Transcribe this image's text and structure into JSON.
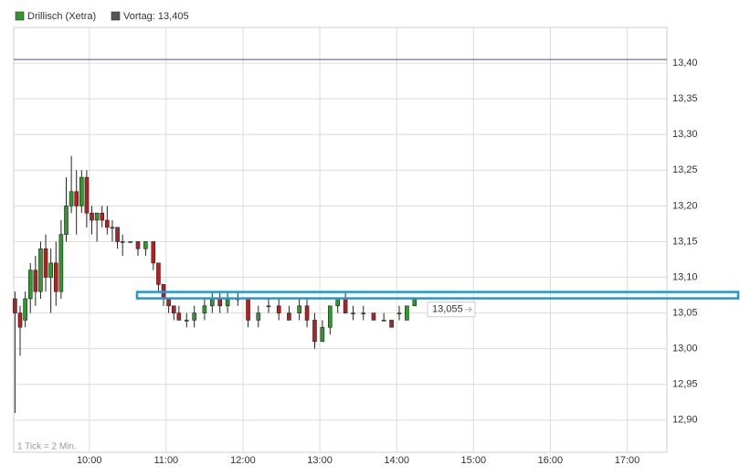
{
  "chart_data": {
    "type": "candlestick",
    "series": [
      {
        "name": "Drillisch (Xetra)",
        "color": "#2e9a2e",
        "down_color": "#b82020",
        "x": [
          "09:02",
          "09:06",
          "09:10",
          "09:14",
          "09:18",
          "09:22",
          "09:26",
          "09:30",
          "09:34",
          "09:38",
          "09:42",
          "09:46",
          "09:50",
          "09:54",
          "09:58",
          "10:02",
          "10:06",
          "10:10",
          "10:14",
          "10:18",
          "10:22",
          "10:26",
          "10:32",
          "10:38",
          "10:44",
          "10:50",
          "10:54",
          "10:58",
          "11:02",
          "11:06",
          "11:10",
          "11:16",
          "11:22",
          "11:30",
          "11:36",
          "11:42",
          "11:48",
          "11:56",
          "12:04",
          "12:12",
          "12:20",
          "12:28",
          "12:36",
          "12:44",
          "12:50",
          "12:56",
          "13:02",
          "13:08",
          "13:14",
          "13:20",
          "13:26",
          "13:34",
          "13:42",
          "13:50",
          "13:56",
          "14:02",
          "14:08",
          "14:14"
        ],
        "open": [
          13.07,
          13.05,
          13.04,
          13.07,
          13.11,
          13.08,
          13.14,
          13.1,
          13.12,
          13.08,
          13.16,
          13.2,
          13.22,
          13.2,
          13.24,
          13.19,
          13.18,
          13.19,
          13.18,
          13.17,
          13.17,
          13.15,
          13.15,
          13.15,
          13.14,
          13.15,
          13.12,
          13.09,
          13.07,
          13.06,
          13.05,
          13.04,
          13.04,
          13.05,
          13.06,
          13.07,
          13.06,
          13.07,
          13.07,
          13.04,
          13.06,
          13.06,
          13.05,
          13.05,
          13.06,
          13.04,
          13.01,
          13.03,
          13.06,
          13.07,
          13.05,
          13.05,
          13.05,
          13.04,
          13.04,
          13.05,
          13.04,
          13.06
        ],
        "high": [
          13.08,
          13.06,
          13.08,
          13.12,
          13.13,
          13.15,
          13.16,
          13.14,
          13.15,
          13.18,
          13.24,
          13.27,
          13.25,
          13.25,
          13.25,
          13.2,
          13.19,
          13.2,
          13.2,
          13.18,
          13.17,
          13.16,
          13.15,
          13.15,
          13.15,
          13.15,
          13.12,
          13.09,
          13.07,
          13.06,
          13.06,
          13.05,
          13.06,
          13.07,
          13.08,
          13.08,
          13.08,
          13.08,
          13.07,
          13.06,
          13.07,
          13.07,
          13.06,
          13.07,
          13.07,
          13.05,
          13.04,
          13.06,
          13.07,
          13.08,
          13.06,
          13.06,
          13.05,
          13.05,
          13.04,
          13.06,
          13.06,
          13.07
        ],
        "low": [
          12.91,
          12.99,
          13.03,
          13.05,
          13.06,
          13.07,
          13.08,
          13.05,
          13.06,
          13.07,
          13.15,
          13.19,
          13.16,
          13.19,
          13.17,
          13.16,
          13.15,
          13.17,
          13.16,
          13.15,
          13.14,
          13.13,
          13.15,
          13.13,
          13.13,
          13.11,
          13.08,
          13.06,
          13.05,
          13.04,
          13.04,
          13.03,
          13.03,
          13.04,
          13.05,
          13.05,
          13.05,
          13.06,
          13.03,
          13.03,
          13.05,
          13.04,
          13.04,
          13.04,
          13.03,
          13.0,
          13.01,
          13.02,
          13.05,
          13.05,
          13.04,
          13.04,
          13.04,
          13.04,
          13.03,
          13.04,
          13.04,
          13.06
        ],
        "close": [
          13.05,
          13.03,
          13.07,
          13.11,
          13.08,
          13.14,
          13.1,
          13.12,
          13.08,
          13.16,
          13.2,
          13.22,
          13.2,
          13.24,
          13.19,
          13.18,
          13.19,
          13.18,
          13.17,
          13.17,
          13.15,
          13.15,
          13.15,
          13.14,
          13.15,
          13.12,
          13.09,
          13.07,
          13.06,
          13.05,
          13.04,
          13.04,
          13.05,
          13.06,
          13.07,
          13.06,
          13.07,
          13.07,
          13.04,
          13.05,
          13.06,
          13.05,
          13.04,
          13.06,
          13.04,
          13.01,
          13.03,
          13.06,
          13.07,
          13.05,
          13.05,
          13.05,
          13.04,
          13.04,
          13.03,
          13.05,
          13.06,
          13.07
        ]
      }
    ],
    "reference_line": {
      "name": "Vortag: 13,405",
      "value": 13.405,
      "color": "#4a4aa0"
    },
    "marker_level": 13.075,
    "last_label": {
      "value": 13.055,
      "label": "13,055"
    },
    "note": "1 Tick = 2 Min.",
    "xlim": [
      "09:01",
      "17:31"
    ],
    "xticks": [
      "10:00",
      "11:00",
      "12:00",
      "13:00",
      "14:00",
      "15:00",
      "16:00",
      "17:00"
    ],
    "ylim": [
      12.855,
      13.45
    ],
    "yticks": [
      {
        "value": 12.9,
        "label": "12,90"
      },
      {
        "value": 12.95,
        "label": "12,95"
      },
      {
        "value": 13.0,
        "label": "13,00"
      },
      {
        "value": 13.05,
        "label": "13,05"
      },
      {
        "value": 13.1,
        "label": "13,10"
      },
      {
        "value": 13.15,
        "label": "13,15"
      },
      {
        "value": 13.2,
        "label": "13,20"
      },
      {
        "value": 13.25,
        "label": "13,25"
      },
      {
        "value": 13.3,
        "label": "13,30"
      },
      {
        "value": 13.35,
        "label": "13,35"
      },
      {
        "value": 13.4,
        "label": "13,40"
      }
    ],
    "grid": true
  }
}
